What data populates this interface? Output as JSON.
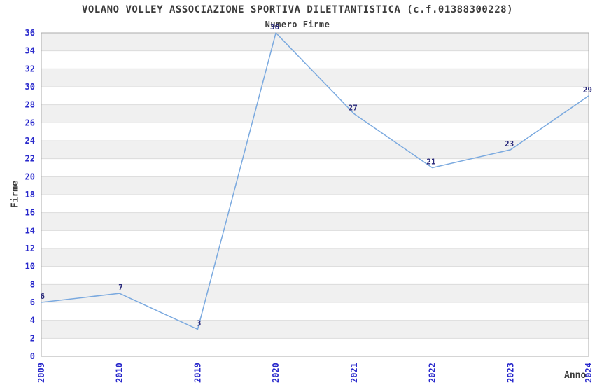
{
  "chart_data": {
    "type": "line",
    "title": "VOLANO VOLLEY ASSOCIAZIONE SPORTIVA DILETTANTISTICA (c.f.01388300228)",
    "subtitle": "Numero Firme",
    "xlabel": "Anno",
    "ylabel": "Firme",
    "x": [
      "2009",
      "2010",
      "2019",
      "2020",
      "2021",
      "2022",
      "2023",
      "2024"
    ],
    "series": [
      {
        "name": "Numero Firme",
        "values": [
          6,
          7,
          3,
          36,
          27,
          21,
          23,
          29
        ]
      }
    ],
    "ylim": [
      0,
      36
    ],
    "ytick_step": 2,
    "grid": true,
    "legend": "none",
    "data_labels": true,
    "colors": {
      "line": "#7aa9df",
      "tick_label": "#2929cc",
      "data_label": "#28287a",
      "band": "#f0f0f0",
      "gridline": "#dbdbdb",
      "plot_border": "#ababab",
      "text": "#3c3c3c",
      "background": "#ffffff"
    }
  }
}
